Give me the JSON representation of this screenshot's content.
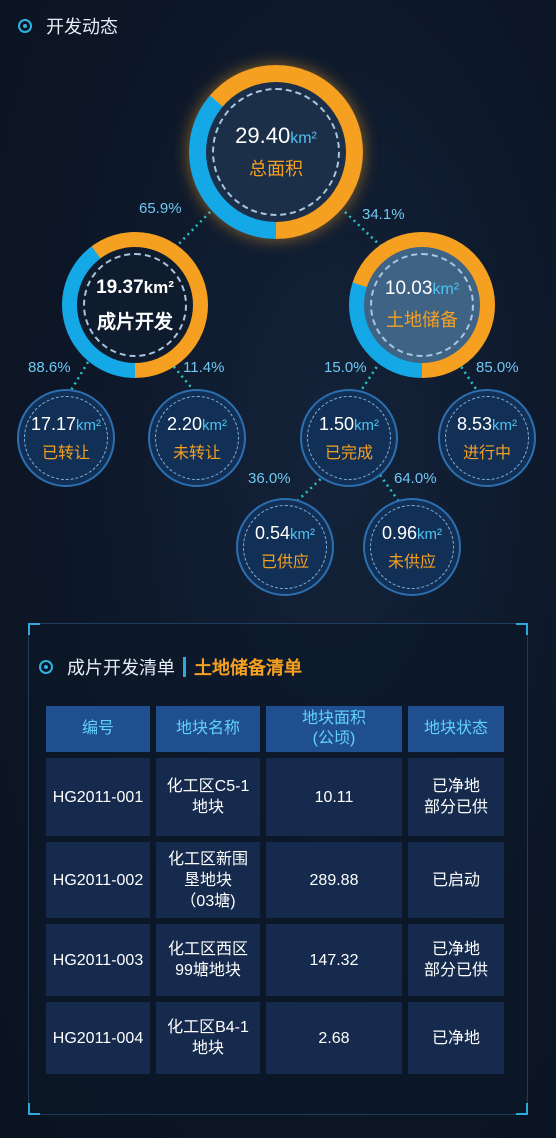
{
  "header": {
    "title": "开发动态"
  },
  "colors": {
    "accent_orange": "#f5a020",
    "accent_blue": "#14a9e6",
    "text_cyan": "#62d0ff"
  },
  "unit": "km²",
  "total": {
    "value": "29.40",
    "label": "总面积",
    "split_fraction": 0.659
  },
  "development": {
    "value": "19.37",
    "label": "成片开发",
    "percent": "65.9%",
    "split_fraction": 0.886
  },
  "reserve": {
    "value": "10.03",
    "label": "土地储备",
    "percent": "34.1%",
    "split_fraction": 0.15
  },
  "transferred": {
    "value": "17.17",
    "label": "已转让",
    "percent": "88.6%"
  },
  "not_transferred": {
    "value": "2.20",
    "label": "未转让",
    "percent": "11.4%"
  },
  "completed": {
    "value": "1.50",
    "label": "已完成",
    "percent": "15.0%"
  },
  "in_progress": {
    "value": "8.53",
    "label": "进行中",
    "percent": "85.0%"
  },
  "supplied": {
    "value": "0.54",
    "label": "已供应",
    "percent": "36.0%"
  },
  "not_supplied": {
    "value": "0.96",
    "label": "未供应",
    "percent": "64.0%"
  },
  "panel": {
    "tab_development": "成片开发清单",
    "tab_reserve": "土地储备清单",
    "columns": [
      "编号",
      "地块名称",
      "地块面积\n(公顷)",
      "地块状态"
    ],
    "rows": [
      {
        "id": "HG2011-001",
        "name": "化工区C5-1\n地块",
        "area": "10.11",
        "status": "已净地\n部分已供"
      },
      {
        "id": "HG2011-002",
        "name": "化工区新围\n垦地块\n（03塘)",
        "area": "289.88",
        "status": "已启动"
      },
      {
        "id": "HG2011-003",
        "name": "化工区西区\n99塘地块",
        "area": "147.32",
        "status": "已净地\n部分已供"
      },
      {
        "id": "HG2011-004",
        "name": "化工区B4-1\n地块",
        "area": "2.68",
        "status": "已净地"
      }
    ]
  }
}
